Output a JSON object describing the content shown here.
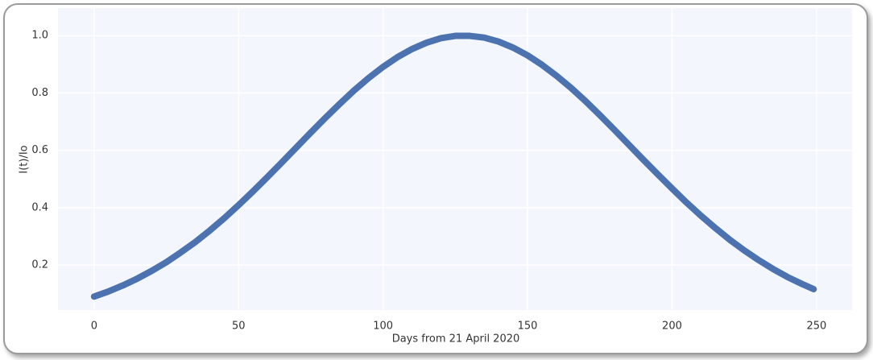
{
  "chart_data": {
    "type": "line",
    "x_label": "Days from 21 April 2020",
    "y_label": "I(t)/Io",
    "x": [
      0,
      5,
      10,
      15,
      20,
      25,
      30,
      35,
      40,
      45,
      50,
      55,
      60,
      65,
      70,
      75,
      80,
      85,
      90,
      95,
      100,
      105,
      110,
      115,
      120,
      125,
      130,
      135,
      140,
      145,
      150,
      155,
      160,
      165,
      170,
      175,
      180,
      185,
      190,
      195,
      200,
      205,
      210,
      215,
      220,
      225,
      230,
      235,
      240,
      245,
      249
    ],
    "series": [
      {
        "color": "#4c72b0",
        "values": [
          0.09,
          0.108,
          0.129,
          0.153,
          0.18,
          0.21,
          0.244,
          0.28,
          0.32,
          0.363,
          0.409,
          0.457,
          0.507,
          0.558,
          0.61,
          0.662,
          0.713,
          0.762,
          0.809,
          0.852,
          0.891,
          0.925,
          0.953,
          0.975,
          0.991,
          0.999,
          0.999,
          0.993,
          0.979,
          0.958,
          0.931,
          0.898,
          0.86,
          0.818,
          0.772,
          0.723,
          0.672,
          0.62,
          0.568,
          0.517,
          0.467,
          0.418,
          0.372,
          0.329,
          0.288,
          0.251,
          0.217,
          0.186,
          0.158,
          0.134,
          0.116
        ]
      }
    ],
    "xlim": [
      -12.5,
      262.3
    ],
    "ylim": [
      0.043,
      1.096
    ],
    "xticks": [
      0,
      50,
      100,
      150,
      200,
      250
    ],
    "yticks": [
      0.2,
      0.4,
      0.6,
      0.8,
      {
        "value": 1,
        "label": "1.0"
      }
    ],
    "grid": true
  }
}
